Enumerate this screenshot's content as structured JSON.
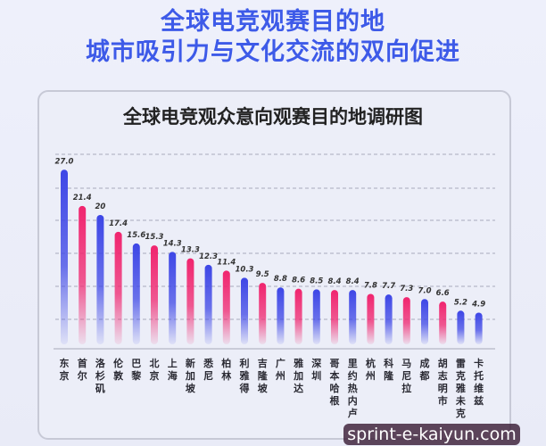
{
  "header": {
    "line1": "全球电竞观赛目的地",
    "line2": "城市吸引力与文化交流的双向促进"
  },
  "watermark": "sprint-e-kaiyun.com",
  "chart_data": {
    "type": "bar",
    "title": "全球电竞观众意向观赛目的地调研图",
    "categories": [
      "东京",
      "首尔",
      "洛杉矶",
      "伦敦",
      "巴黎",
      "北京",
      "上海",
      "新加坡",
      "悉尼",
      "柏林",
      "利雅得",
      "吉隆坡",
      "广州",
      "雅加达",
      "深圳",
      "哥本哈根",
      "里约热内卢",
      "杭州",
      "科隆",
      "马尼拉",
      "成都",
      "胡志明市",
      "雷克雅未克",
      "卡托维兹"
    ],
    "values": [
      27.0,
      21.4,
      20,
      17.4,
      15.6,
      15.3,
      14.3,
      13.3,
      12.3,
      11.4,
      10.3,
      9.5,
      8.8,
      8.6,
      8.5,
      8.4,
      8.4,
      7.8,
      7.7,
      7.3,
      7.0,
      6.6,
      5.2,
      4.9
    ],
    "value_labels": [
      "27.0",
      "21.4",
      "20",
      "17.4",
      "15.6",
      "15.3",
      "14.3",
      "13.3",
      "12.3",
      "11.4",
      "10.3",
      "9.5",
      "8.8",
      "8.6",
      "8.5",
      "8.4",
      "8.4",
      "7.8",
      "7.7",
      "7.3",
      "7.0",
      "6.6",
      "5.2",
      "4.9"
    ],
    "bar_colors": [
      "blue",
      "pink",
      "blue",
      "pink",
      "blue",
      "pink",
      "blue",
      "pink",
      "blue",
      "pink",
      "blue",
      "pink",
      "blue",
      "pink",
      "blue",
      "pink",
      "blue",
      "pink",
      "blue",
      "pink",
      "blue",
      "pink",
      "blue",
      "blue"
    ],
    "colors": {
      "blue": "#3d46e6",
      "pink": "#f0246e"
    },
    "ylim": [
      0,
      30
    ],
    "grid": true,
    "legend": "none"
  }
}
